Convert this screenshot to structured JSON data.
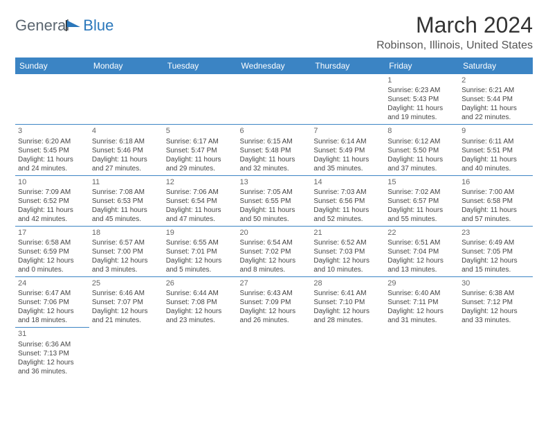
{
  "brand": {
    "part1": "General",
    "part2": "Blue"
  },
  "header": {
    "title": "March 2024",
    "location": "Robinson, Illinois, United States"
  },
  "colors": {
    "header_bg": "#3b84c4",
    "header_text": "#ffffff",
    "border": "#3b84c4",
    "brand_gray": "#5b6670",
    "brand_blue": "#2a77bb"
  },
  "dayNames": [
    "Sunday",
    "Monday",
    "Tuesday",
    "Wednesday",
    "Thursday",
    "Friday",
    "Saturday"
  ],
  "weeks": [
    [
      null,
      null,
      null,
      null,
      null,
      {
        "n": "1",
        "sunrise": "6:23 AM",
        "sunset": "5:43 PM",
        "dl": "11 hours and 19 minutes."
      },
      {
        "n": "2",
        "sunrise": "6:21 AM",
        "sunset": "5:44 PM",
        "dl": "11 hours and 22 minutes."
      }
    ],
    [
      {
        "n": "3",
        "sunrise": "6:20 AM",
        "sunset": "5:45 PM",
        "dl": "11 hours and 24 minutes."
      },
      {
        "n": "4",
        "sunrise": "6:18 AM",
        "sunset": "5:46 PM",
        "dl": "11 hours and 27 minutes."
      },
      {
        "n": "5",
        "sunrise": "6:17 AM",
        "sunset": "5:47 PM",
        "dl": "11 hours and 29 minutes."
      },
      {
        "n": "6",
        "sunrise": "6:15 AM",
        "sunset": "5:48 PM",
        "dl": "11 hours and 32 minutes."
      },
      {
        "n": "7",
        "sunrise": "6:14 AM",
        "sunset": "5:49 PM",
        "dl": "11 hours and 35 minutes."
      },
      {
        "n": "8",
        "sunrise": "6:12 AM",
        "sunset": "5:50 PM",
        "dl": "11 hours and 37 minutes."
      },
      {
        "n": "9",
        "sunrise": "6:11 AM",
        "sunset": "5:51 PM",
        "dl": "11 hours and 40 minutes."
      }
    ],
    [
      {
        "n": "10",
        "sunrise": "7:09 AM",
        "sunset": "6:52 PM",
        "dl": "11 hours and 42 minutes."
      },
      {
        "n": "11",
        "sunrise": "7:08 AM",
        "sunset": "6:53 PM",
        "dl": "11 hours and 45 minutes."
      },
      {
        "n": "12",
        "sunrise": "7:06 AM",
        "sunset": "6:54 PM",
        "dl": "11 hours and 47 minutes."
      },
      {
        "n": "13",
        "sunrise": "7:05 AM",
        "sunset": "6:55 PM",
        "dl": "11 hours and 50 minutes."
      },
      {
        "n": "14",
        "sunrise": "7:03 AM",
        "sunset": "6:56 PM",
        "dl": "11 hours and 52 minutes."
      },
      {
        "n": "15",
        "sunrise": "7:02 AM",
        "sunset": "6:57 PM",
        "dl": "11 hours and 55 minutes."
      },
      {
        "n": "16",
        "sunrise": "7:00 AM",
        "sunset": "6:58 PM",
        "dl": "11 hours and 57 minutes."
      }
    ],
    [
      {
        "n": "17",
        "sunrise": "6:58 AM",
        "sunset": "6:59 PM",
        "dl": "12 hours and 0 minutes."
      },
      {
        "n": "18",
        "sunrise": "6:57 AM",
        "sunset": "7:00 PM",
        "dl": "12 hours and 3 minutes."
      },
      {
        "n": "19",
        "sunrise": "6:55 AM",
        "sunset": "7:01 PM",
        "dl": "12 hours and 5 minutes."
      },
      {
        "n": "20",
        "sunrise": "6:54 AM",
        "sunset": "7:02 PM",
        "dl": "12 hours and 8 minutes."
      },
      {
        "n": "21",
        "sunrise": "6:52 AM",
        "sunset": "7:03 PM",
        "dl": "12 hours and 10 minutes."
      },
      {
        "n": "22",
        "sunrise": "6:51 AM",
        "sunset": "7:04 PM",
        "dl": "12 hours and 13 minutes."
      },
      {
        "n": "23",
        "sunrise": "6:49 AM",
        "sunset": "7:05 PM",
        "dl": "12 hours and 15 minutes."
      }
    ],
    [
      {
        "n": "24",
        "sunrise": "6:47 AM",
        "sunset": "7:06 PM",
        "dl": "12 hours and 18 minutes."
      },
      {
        "n": "25",
        "sunrise": "6:46 AM",
        "sunset": "7:07 PM",
        "dl": "12 hours and 21 minutes."
      },
      {
        "n": "26",
        "sunrise": "6:44 AM",
        "sunset": "7:08 PM",
        "dl": "12 hours and 23 minutes."
      },
      {
        "n": "27",
        "sunrise": "6:43 AM",
        "sunset": "7:09 PM",
        "dl": "12 hours and 26 minutes."
      },
      {
        "n": "28",
        "sunrise": "6:41 AM",
        "sunset": "7:10 PM",
        "dl": "12 hours and 28 minutes."
      },
      {
        "n": "29",
        "sunrise": "6:40 AM",
        "sunset": "7:11 PM",
        "dl": "12 hours and 31 minutes."
      },
      {
        "n": "30",
        "sunrise": "6:38 AM",
        "sunset": "7:12 PM",
        "dl": "12 hours and 33 minutes."
      }
    ],
    [
      {
        "n": "31",
        "sunrise": "6:36 AM",
        "sunset": "7:13 PM",
        "dl": "12 hours and 36 minutes."
      },
      null,
      null,
      null,
      null,
      null,
      null
    ]
  ],
  "labels": {
    "sunrise": "Sunrise:",
    "sunset": "Sunset:",
    "daylight": "Daylight:"
  }
}
